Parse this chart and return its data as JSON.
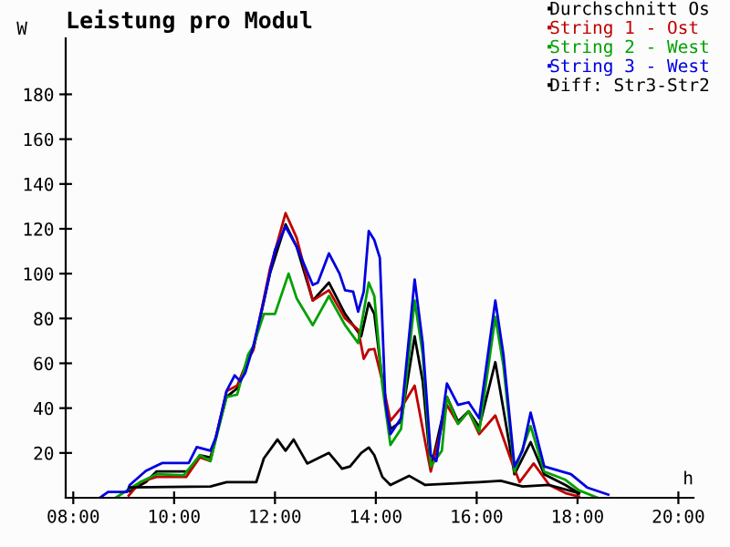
{
  "chart_data": {
    "type": "line",
    "title": "Leistung pro Modul",
    "xlabel": "h",
    "ylabel": "W",
    "xlim": [
      7.85,
      20.3
    ],
    "ylim": [
      0,
      205
    ],
    "xticks": [
      {
        "value": 8,
        "label": "08:00"
      },
      {
        "value": 10,
        "label": "10:00"
      },
      {
        "value": 12,
        "label": "12:00"
      },
      {
        "value": 14,
        "label": "14:00"
      },
      {
        "value": 16,
        "label": "16:00"
      },
      {
        "value": 18,
        "label": "18:00"
      },
      {
        "value": 20,
        "label": "20:00"
      }
    ],
    "yticks": [
      20,
      40,
      60,
      80,
      100,
      120,
      140,
      160,
      180
    ],
    "grid": false,
    "legend": "top right",
    "series": [
      {
        "name": "Durchschnitt Os",
        "color": "#000000",
        "x": [
          9.12,
          9.44,
          9.65,
          10.29,
          10.51,
          10.72,
          11.04,
          11.25,
          11.47,
          11.57,
          11.9,
          12.21,
          12.43,
          12.75,
          13.07,
          13.39,
          13.71,
          13.86,
          13.97,
          14.13,
          14.29,
          14.5,
          14.77,
          14.93,
          15.09,
          15.41,
          15.63,
          15.84,
          16.05,
          16.37,
          16.53,
          16.75,
          17.07,
          17.34,
          17.76,
          18.03
        ],
        "values": [
          3,
          7,
          11.7,
          11.7,
          19,
          18,
          45,
          48.8,
          62,
          66,
          100,
          122,
          112,
          88,
          96,
          82,
          72,
          87,
          82,
          52,
          30.7,
          34,
          72,
          52,
          13,
          45,
          34,
          38.6,
          31.5,
          60.5,
          39.6,
          10.5,
          24.8,
          10.5,
          5.7,
          2
        ]
      },
      {
        "name": "String 1 - Ost",
        "color": "#c00000",
        "x": [
          9.1,
          9.33,
          9.65,
          10.24,
          10.51,
          10.72,
          11.04,
          11.25,
          11.47,
          11.57,
          11.9,
          12.21,
          12.43,
          12.75,
          13.07,
          13.39,
          13.65,
          13.76,
          13.86,
          13.97,
          14.13,
          14.29,
          14.5,
          14.77,
          14.93,
          15.09,
          15.41,
          15.63,
          15.84,
          16.05,
          16.37,
          16.69,
          16.85,
          17.13,
          17.44,
          17.76,
          18.03
        ],
        "values": [
          1,
          7,
          9.3,
          9.3,
          18,
          16.4,
          47.6,
          50,
          62,
          66,
          102,
          127,
          116,
          88,
          92.6,
          80,
          75,
          62,
          66,
          66.4,
          52,
          34.3,
          40,
          50,
          30.7,
          11.7,
          41.4,
          33,
          38.6,
          28.4,
          36.7,
          16.4,
          7,
          15.3,
          5.7,
          2.1,
          0.5
        ]
      },
      {
        "name": "String 2 - West",
        "color": "#00a000",
        "x": [
          8.84,
          9.33,
          9.65,
          10.19,
          10.51,
          10.72,
          11.04,
          11.25,
          11.47,
          11.57,
          11.78,
          12.0,
          12.27,
          12.43,
          12.75,
          13.07,
          13.39,
          13.65,
          13.86,
          13.97,
          14.13,
          14.29,
          14.5,
          14.77,
          14.93,
          15.09,
          15.31,
          15.41,
          15.63,
          15.84,
          16.05,
          16.37,
          16.53,
          16.75,
          17.07,
          17.34,
          17.76,
          18.03,
          18.4
        ],
        "values": [
          0,
          7,
          10.5,
          10,
          19,
          16.4,
          45,
          46,
          64,
          67.6,
          82,
          82,
          100,
          89,
          77,
          90,
          77,
          69,
          96,
          90,
          50,
          23.6,
          30.7,
          88,
          64,
          14,
          21,
          45,
          33,
          38.6,
          29.5,
          80.7,
          59,
          11.7,
          32,
          11.7,
          8,
          3.3,
          0
        ]
      },
      {
        "name": "String 3 - West",
        "color": "#0000e0",
        "x": [
          8.53,
          8.69,
          9.07,
          9.12,
          9.44,
          9.76,
          10.29,
          10.45,
          10.72,
          10.83,
          11.04,
          11.2,
          11.31,
          11.41,
          11.57,
          11.78,
          12.0,
          12.21,
          12.43,
          12.75,
          12.85,
          13.07,
          13.28,
          13.39,
          13.55,
          13.65,
          13.76,
          13.86,
          13.97,
          14.08,
          14.19,
          14.29,
          14.5,
          14.77,
          14.93,
          15.09,
          15.2,
          15.41,
          15.63,
          15.84,
          16.05,
          16.37,
          16.53,
          16.75,
          16.91,
          17.07,
          17.34,
          17.87,
          18.19,
          18.61
        ],
        "values": [
          0,
          2.6,
          2.6,
          5.7,
          12,
          15.5,
          15.5,
          22.6,
          21,
          27,
          47.6,
          54.6,
          52,
          55.7,
          67.6,
          88,
          110.5,
          121,
          112,
          95,
          96,
          109,
          100,
          92.6,
          92,
          83,
          92,
          119,
          115,
          107,
          42.6,
          28.4,
          35.5,
          97.4,
          69,
          19,
          16.4,
          51,
          41.4,
          42.6,
          35.5,
          88,
          64,
          14,
          21,
          38,
          14,
          10.5,
          4.6,
          1.4
        ]
      },
      {
        "name": "Diff: Str3-Str2",
        "color": "#000000",
        "x": [
          9.12,
          10.72,
          11.04,
          11.63,
          11.78,
          12.05,
          12.21,
          12.37,
          12.64,
          12.85,
          13.07,
          13.33,
          13.49,
          13.71,
          13.86,
          13.97,
          14.13,
          14.29,
          14.66,
          14.98,
          16.05,
          16.48,
          16.91,
          17.44,
          18.03
        ],
        "values": [
          4.6,
          5,
          7,
          7,
          17.6,
          26,
          21,
          26,
          15.3,
          17.6,
          20,
          13,
          14,
          20,
          22.4,
          19,
          9.3,
          5.7,
          9.8,
          5.7,
          7,
          7.6,
          5,
          5.7,
          2
        ]
      }
    ]
  }
}
